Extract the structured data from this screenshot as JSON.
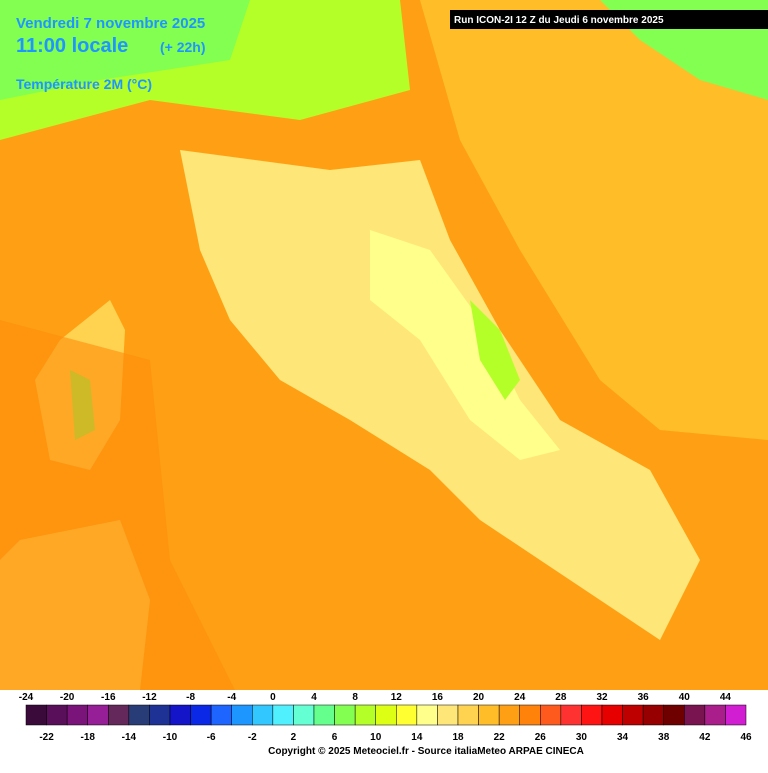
{
  "header": {
    "date": "Vendredi 7 novembre 2025",
    "time": "11:00 locale",
    "offset": "(+ 22h)",
    "variable": "Température 2M (°C)",
    "run": "Run ICON-2I 12 Z du Jeudi 6 novembre 2025"
  },
  "legend": {
    "top_labels": [
      -24,
      -20,
      -16,
      -12,
      -8,
      -4,
      0,
      4,
      8,
      12,
      16,
      20,
      24,
      28,
      32,
      36,
      40,
      44
    ],
    "bottom_labels": [
      -22,
      -18,
      -14,
      -10,
      -6,
      -2,
      2,
      6,
      10,
      14,
      18,
      22,
      26,
      30,
      34,
      38,
      42,
      46
    ],
    "colors": [
      "#3a0a3a",
      "#5a0f5a",
      "#7a147a",
      "#961e96",
      "#64285a",
      "#283c78",
      "#1e3296",
      "#1414c8",
      "#0a28e6",
      "#1e64ff",
      "#1e96ff",
      "#32c8ff",
      "#50f0ff",
      "#64ffd2",
      "#64ff8c",
      "#82ff50",
      "#b4ff28",
      "#dcff14",
      "#ffff32",
      "#ffff8c",
      "#ffe678",
      "#ffd250",
      "#ffbe28",
      "#ffa014",
      "#ff820a",
      "#ff5a1e",
      "#ff3232",
      "#ff1414",
      "#e60000",
      "#be0000",
      "#960000",
      "#6e0000",
      "#7a1450",
      "#aa1e8c",
      "#d21ed2"
    ]
  },
  "footer": {
    "copyright": "Copyright © 2025 Meteociel.fr - Source italiaMeteo ARPAE CINECA"
  }
}
